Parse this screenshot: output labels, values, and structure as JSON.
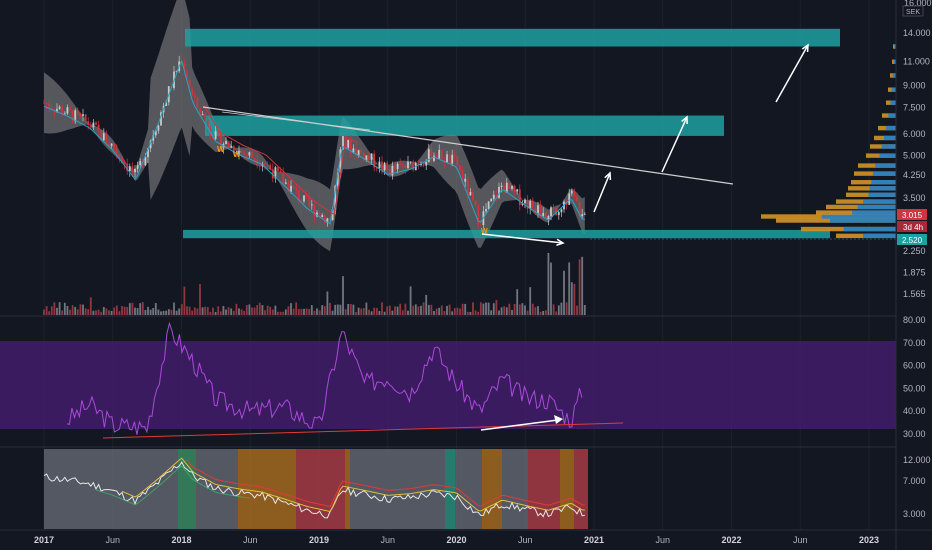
{
  "currency": "SEK",
  "price_axis": {
    "ticks": [
      "14.000",
      "11.000",
      "9.000",
      "7.500",
      "6.000",
      "5.000",
      "4.250",
      "3.500",
      "2.250",
      "1.875",
      "1.565"
    ],
    "scale": "log",
    "current_price": "3.015",
    "countdown": "3d 4h",
    "level_label": "2.520",
    "top_label": "16.000"
  },
  "rsi_axis": {
    "ticks": [
      "80.00",
      "70.00",
      "60.00",
      "50.00",
      "40.00",
      "30.00"
    ]
  },
  "lower_axis": {
    "ticks": [
      "12.000",
      "7.000",
      "3.000"
    ]
  },
  "time_axis": {
    "labels": [
      "2017",
      "Jun",
      "2018",
      "Jun",
      "2019",
      "Jun",
      "2020",
      "Jun",
      "2021",
      "Jun",
      "2022",
      "Jun",
      "2023"
    ]
  },
  "colors": {
    "background": "#131722",
    "zone": "#1fa0a0",
    "bollinger": "#888888",
    "rsi_band": "#4a1d75",
    "rsi_line": "#a94bd8",
    "candle_up": "#c8c8c8",
    "candle_down": "#d0343f",
    "trendline": "#cccccc",
    "arrow": "#ffffff",
    "divergence": "#e03a3a",
    "profile_up": "#2a7fc1",
    "profile_down": "#d49428"
  },
  "chart_data": {
    "type": "candlestick",
    "price": [
      {
        "date": "2017-01",
        "close": 7.8
      },
      {
        "date": "2017-03",
        "close": 7.2
      },
      {
        "date": "2017-05",
        "close": 6.5
      },
      {
        "date": "2017-07",
        "close": 5.4
      },
      {
        "date": "2017-09",
        "close": 4.2
      },
      {
        "date": "2017-11",
        "close": 6.8
      },
      {
        "date": "2018-01",
        "close": 11.5
      },
      {
        "date": "2018-02",
        "close": 8.0
      },
      {
        "date": "2018-04",
        "close": 5.8
      },
      {
        "date": "2018-06",
        "close": 5.2
      },
      {
        "date": "2018-08",
        "close": 4.8
      },
      {
        "date": "2018-10",
        "close": 4.0
      },
      {
        "date": "2018-12",
        "close": 3.3
      },
      {
        "date": "2019-02",
        "close": 2.9
      },
      {
        "date": "2019-03",
        "close": 5.6
      },
      {
        "date": "2019-05",
        "close": 5.0
      },
      {
        "date": "2019-07",
        "close": 4.4
      },
      {
        "date": "2019-09",
        "close": 4.6
      },
      {
        "date": "2019-11",
        "close": 5.1
      },
      {
        "date": "2020-01",
        "close": 4.7
      },
      {
        "date": "2020-03",
        "close": 2.9
      },
      {
        "date": "2020-05",
        "close": 3.9
      },
      {
        "date": "2020-07",
        "close": 3.4
      },
      {
        "date": "2020-09",
        "close": 3.0
      },
      {
        "date": "2020-11",
        "close": 3.6
      },
      {
        "date": "2020-12",
        "close": 3.015
      }
    ],
    "resistance_zones": [
      {
        "low": 12.5,
        "high": 14.5
      },
      {
        "low": 5.9,
        "high": 7.0
      },
      {
        "low": 2.5,
        "high": 2.68
      }
    ],
    "rsi": [
      {
        "date": "2017-03",
        "value": 36
      },
      {
        "date": "2017-05",
        "value": 43
      },
      {
        "date": "2017-07",
        "value": 34
      },
      {
        "date": "2017-10",
        "value": 33
      },
      {
        "date": "2017-12",
        "value": 76
      },
      {
        "date": "2018-02",
        "value": 62
      },
      {
        "date": "2018-04",
        "value": 45
      },
      {
        "date": "2018-07",
        "value": 40
      },
      {
        "date": "2018-10",
        "value": 42
      },
      {
        "date": "2019-01",
        "value": 33
      },
      {
        "date": "2019-03",
        "value": 75
      },
      {
        "date": "2019-05",
        "value": 52
      },
      {
        "date": "2019-07",
        "value": 55
      },
      {
        "date": "2019-09",
        "value": 48
      },
      {
        "date": "2019-11",
        "value": 68
      },
      {
        "date": "2020-01",
        "value": 52
      },
      {
        "date": "2020-03",
        "value": 40
      },
      {
        "date": "2020-05",
        "value": 54
      },
      {
        "date": "2020-07",
        "value": 46
      },
      {
        "date": "2020-09",
        "value": 45
      },
      {
        "date": "2020-11",
        "value": 36
      },
      {
        "date": "2020-12",
        "value": 50
      }
    ]
  }
}
